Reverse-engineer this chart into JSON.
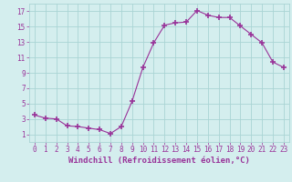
{
  "x": [
    0,
    1,
    2,
    3,
    4,
    5,
    6,
    7,
    8,
    9,
    10,
    11,
    12,
    13,
    14,
    15,
    16,
    17,
    18,
    19,
    20,
    21,
    22,
    23
  ],
  "y": [
    3.5,
    3.1,
    3.0,
    2.1,
    2.0,
    1.8,
    1.6,
    1.1,
    2.0,
    5.3,
    9.7,
    12.9,
    15.2,
    15.5,
    15.6,
    17.1,
    16.5,
    16.2,
    16.2,
    15.1,
    14.0,
    12.9,
    10.4,
    9.7
  ],
  "line_color": "#993399",
  "marker": "+",
  "marker_size": 4,
  "bg_color": "#d4eeee",
  "grid_color": "#aad4d4",
  "xlabel": "Windchill (Refroidissement éolien,°C)",
  "xlim": [
    -0.5,
    23.5
  ],
  "ylim": [
    0,
    18
  ],
  "xticks": [
    0,
    1,
    2,
    3,
    4,
    5,
    6,
    7,
    8,
    9,
    10,
    11,
    12,
    13,
    14,
    15,
    16,
    17,
    18,
    19,
    20,
    21,
    22,
    23
  ],
  "yticks": [
    1,
    3,
    5,
    7,
    9,
    11,
    13,
    15,
    17
  ],
  "label_color": "#993399",
  "font_size": 5.5,
  "xlabel_fontsize": 6.5,
  "lw": 0.8,
  "marker_color": "#993399"
}
